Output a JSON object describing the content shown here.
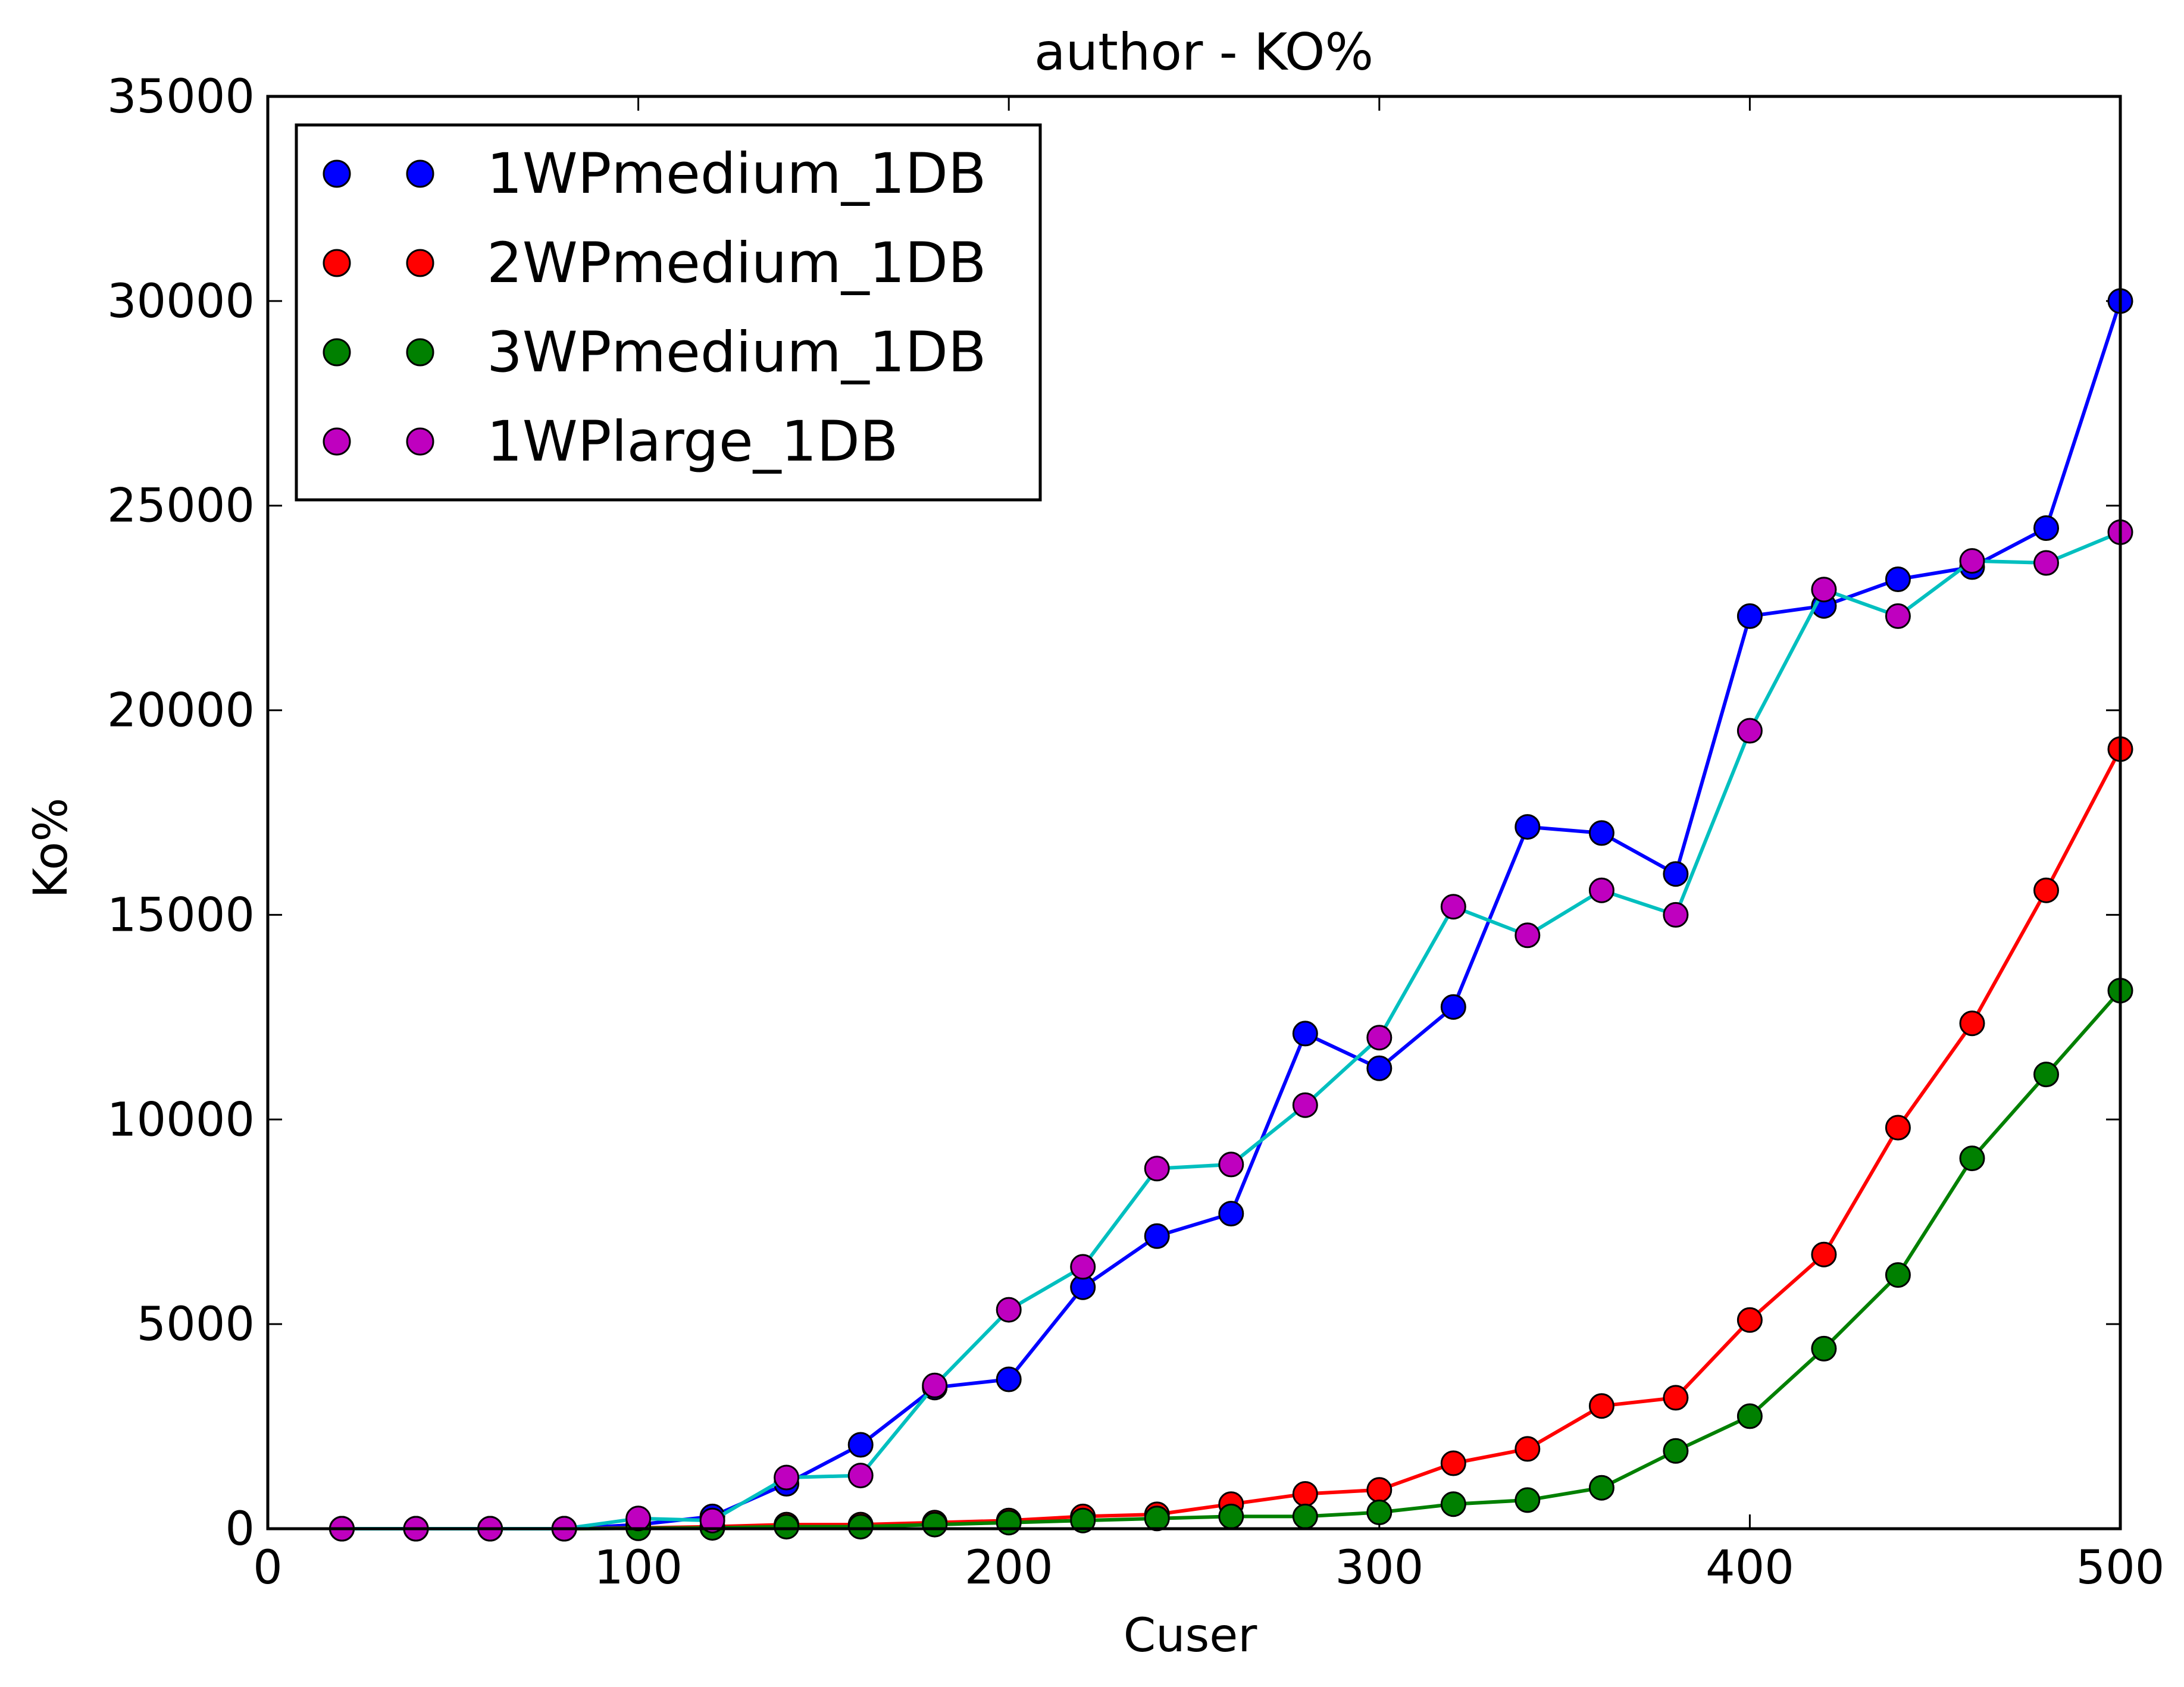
{
  "chart_data": {
    "type": "line",
    "title": "author  - KO%",
    "xlabel": "Cuser",
    "ylabel": "Ko%",
    "xlim": [
      0,
      500
    ],
    "ylim": [
      0,
      35000
    ],
    "xticks": [
      0,
      100,
      200,
      300,
      400,
      500
    ],
    "yticks": [
      0,
      5000,
      10000,
      15000,
      20000,
      25000,
      30000,
      35000
    ],
    "grid": false,
    "legend_position": "top-left",
    "x": [
      20,
      40,
      60,
      80,
      100,
      120,
      140,
      160,
      180,
      200,
      220,
      240,
      260,
      280,
      300,
      320,
      340,
      360,
      380,
      400,
      420,
      440,
      460,
      480,
      500
    ],
    "series": [
      {
        "name": "1WPmedium_1DB",
        "marker_color": "#0000ff",
        "line_color": "#0000ff",
        "values": [
          0,
          0,
          0,
          0,
          100,
          300,
          1100,
          2050,
          3450,
          3650,
          5900,
          7150,
          7700,
          12100,
          11250,
          12750,
          17150,
          17000,
          16000,
          22300,
          22550,
          23200,
          23500,
          24450,
          30000
        ]
      },
      {
        "name": "2WPmedium_1DB",
        "marker_color": "#ff0000",
        "line_color": "#ff0000",
        "values": [
          0,
          0,
          0,
          0,
          20,
          50,
          100,
          100,
          150,
          200,
          300,
          350,
          600,
          850,
          950,
          1600,
          1950,
          3000,
          3200,
          5100,
          6700,
          9800,
          12350,
          15600,
          19050
        ]
      },
      {
        "name": "3WPmedium_1DB",
        "marker_color": "#008000",
        "line_color": "#008000",
        "values": [
          0,
          0,
          0,
          0,
          10,
          20,
          50,
          50,
          100,
          150,
          200,
          250,
          300,
          300,
          400,
          600,
          700,
          1000,
          1900,
          2750,
          4400,
          6200,
          9050,
          11100,
          13150
        ]
      },
      {
        "name": "1WPlarge_1DB",
        "marker_color": "#bf00bf",
        "line_color": "#00bfbf",
        "values": [
          0,
          0,
          0,
          0,
          250,
          200,
          1250,
          1300,
          3500,
          5350,
          6400,
          8800,
          8900,
          10350,
          12000,
          15200,
          14500,
          15600,
          15000,
          19500,
          22950,
          22300,
          23650,
          23600,
          24350
        ]
      }
    ]
  }
}
